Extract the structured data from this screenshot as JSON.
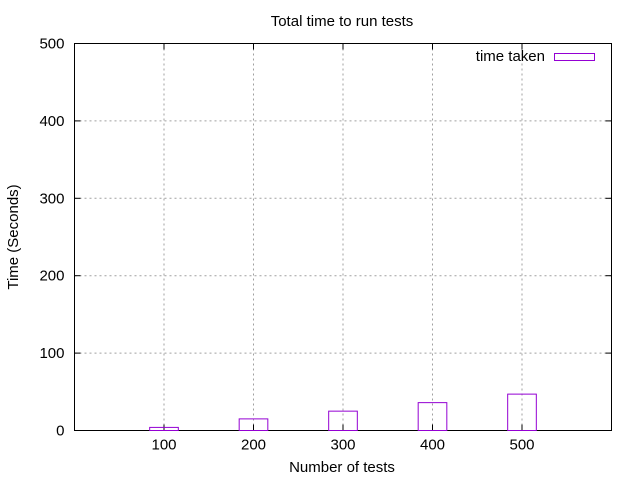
{
  "chart_data": {
    "type": "bar",
    "title": "Total time to run tests",
    "xlabel": "Number of tests",
    "ylabel": "Time (Seconds)",
    "categories": [
      "100",
      "200",
      "300",
      "400",
      "500"
    ],
    "series": [
      {
        "name": "time taken",
        "values": [
          4,
          15,
          25,
          36,
          47
        ],
        "color": "#9400d3"
      }
    ],
    "ylim": [
      0,
      500
    ],
    "yticks": [
      "0",
      "100",
      "200",
      "300",
      "400",
      "500"
    ],
    "grid": true,
    "legend": "top-right"
  }
}
